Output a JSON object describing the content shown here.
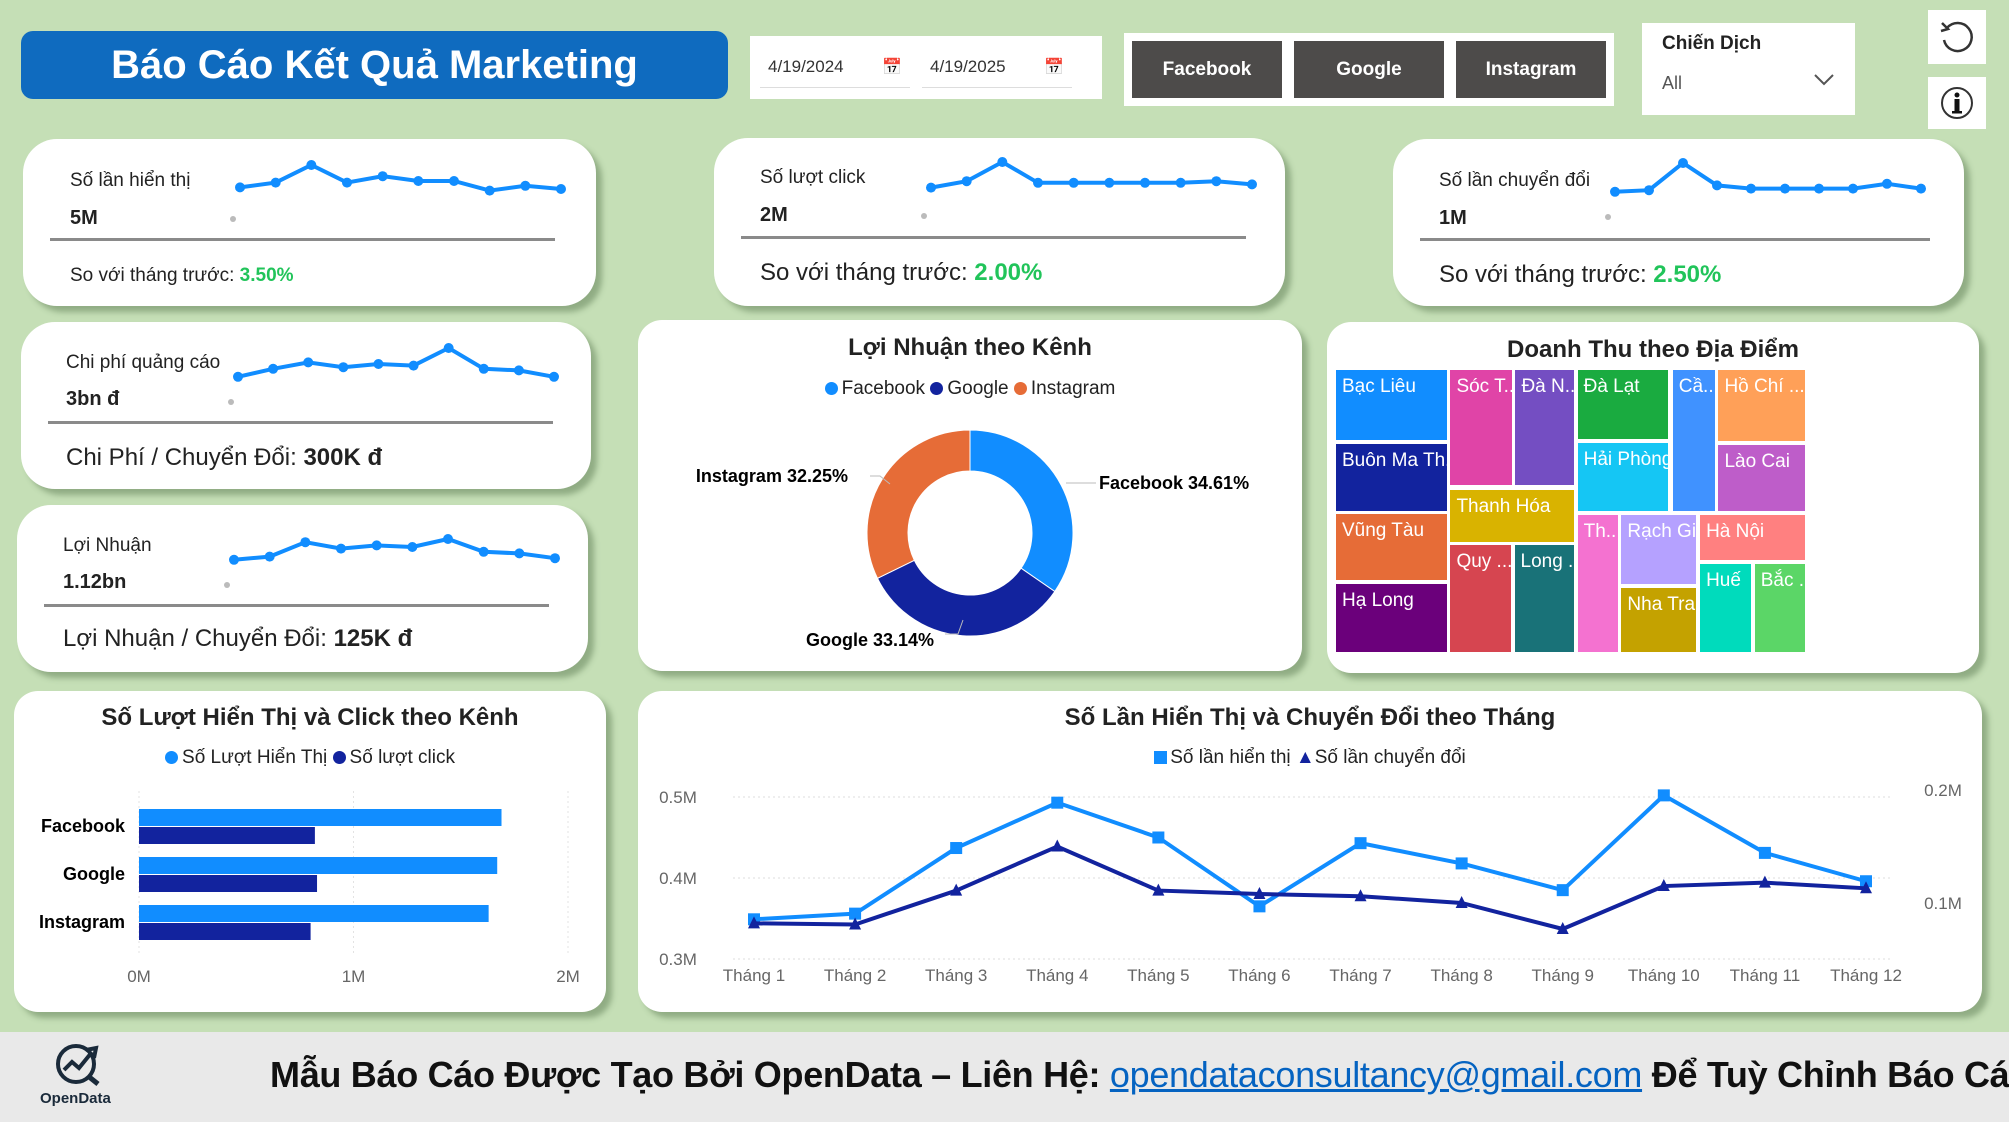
{
  "header": {
    "title": "Báo Cáo Kết Quả Marketing",
    "date_start": "4/19/2024",
    "date_end": "4/19/2025",
    "calendar_icon": "calendar-icon",
    "channel_buttons": [
      "Facebook",
      "Google",
      "Instagram"
    ],
    "campaign": {
      "label": "Chiến Dịch",
      "value": "All"
    },
    "reset_icon": "reset-icon",
    "info_icon": "info-icon"
  },
  "kpis": [
    {
      "label": "Số lần hiển thị",
      "value": "5M",
      "compare_label": "So với tháng trước:",
      "compare_value": "3.50%",
      "sparkline": [
        0.3,
        0.45,
        1.0,
        0.45,
        0.65,
        0.5,
        0.5,
        0.2,
        0.35,
        0.25
      ]
    },
    {
      "label": "Số lượt click",
      "value": "2M",
      "compare_label": "So với tháng trước:",
      "compare_value": "2.00%",
      "sparkline": [
        0.2,
        0.4,
        1.0,
        0.35,
        0.35,
        0.35,
        0.35,
        0.35,
        0.4,
        0.3
      ]
    },
    {
      "label": "Số lần chuyển đổi",
      "value": "1M",
      "compare_label": "So với tháng trước:",
      "compare_value": "2.50%",
      "sparkline": [
        0.1,
        0.15,
        1.0,
        0.3,
        0.2,
        0.2,
        0.2,
        0.2,
        0.35,
        0.2
      ]
    },
    {
      "label": "Chi phí quảng cáo",
      "value": "3bn đ",
      "compare_label": "Chi Phí / Chuyển Đổi:",
      "compare_value": "300K đ",
      "sparkline": [
        0.1,
        0.35,
        0.55,
        0.4,
        0.5,
        0.45,
        1.0,
        0.35,
        0.3,
        0.1
      ]
    },
    {
      "label": "Lợi Nhuận",
      "value": "1.12bn",
      "compare_label": "Lợi Nhuận / Chuyển Đổi:",
      "compare_value": "125K đ",
      "sparkline": [
        0.1,
        0.2,
        0.65,
        0.45,
        0.55,
        0.5,
        0.75,
        0.35,
        0.3,
        0.15
      ]
    }
  ],
  "colors": {
    "accent": "#118DFF",
    "dark": "#12239E",
    "orange": "#E66C37",
    "positive": "#21C45A"
  },
  "chart_data": [
    {
      "type": "pie",
      "title": "Lợi Nhuận theo Kênh",
      "legend": "top",
      "donut": true,
      "slices": [
        {
          "name": "Facebook",
          "value": 34.61,
          "label": "Facebook 34.61%",
          "color": "#118DFF"
        },
        {
          "name": "Google",
          "value": 33.14,
          "label": "Google 33.14%",
          "color": "#12239E"
        },
        {
          "name": "Instagram",
          "value": 32.25,
          "label": "Instagram 32.25%",
          "color": "#E66C37"
        }
      ]
    },
    {
      "type": "heatmap",
      "subtype": "treemap",
      "title": "Doanh Thu theo Địa Điểm",
      "cells": [
        {
          "label": "Bạc Liêu",
          "color": "#118DFF"
        },
        {
          "label": "Buôn Ma Th...",
          "color": "#12239E"
        },
        {
          "label": "Vũng Tàu",
          "color": "#E66C37"
        },
        {
          "label": "Hạ Long",
          "color": "#6B007B"
        },
        {
          "label": "Sóc T...",
          "color": "#E044A7"
        },
        {
          "label": "Đà N...",
          "color": "#744EC2"
        },
        {
          "label": "Thanh Hóa",
          "color": "#D9B300"
        },
        {
          "label": "Quy ...",
          "color": "#D64550"
        },
        {
          "label": "Long ...",
          "color": "#197278"
        },
        {
          "label": "Đà Lạt",
          "color": "#1AAB40"
        },
        {
          "label": "Hải Phòng",
          "color": "#15C6F4"
        },
        {
          "label": "Cầ...",
          "color": "#4092FF"
        },
        {
          "label": "Hồ Chí ...",
          "color": "#FFA058"
        },
        {
          "label": "Lào Cai",
          "color": "#BE5DC9"
        },
        {
          "label": "Th...",
          "color": "#F472D0"
        },
        {
          "label": "Rạch Giá",
          "color": "#B5A1FF"
        },
        {
          "label": "Nha Tra...",
          "color": "#C4A200"
        },
        {
          "label": "Hà Nội",
          "color": "#FF8080"
        },
        {
          "label": "Huế",
          "color": "#00DBBC"
        },
        {
          "label": "Bắc ...",
          "color": "#5BD667"
        }
      ]
    },
    {
      "type": "bar",
      "orientation": "horizontal",
      "title": "Số Lượt Hiển Thị và Click theo Kênh",
      "legend": "top",
      "categories": [
        "Facebook",
        "Google",
        "Instagram"
      ],
      "series": [
        {
          "name": "Số Lượt Hiển Thị",
          "values": [
            1.69,
            1.67,
            1.63
          ],
          "color": "#118DFF"
        },
        {
          "name": "Số lượt click",
          "values": [
            0.82,
            0.83,
            0.8
          ],
          "color": "#12239E"
        }
      ],
      "xlim": [
        0,
        2
      ],
      "xticks": [
        "0M",
        "1M",
        "2M"
      ],
      "unit": "M",
      "grid": true
    },
    {
      "type": "line",
      "title": "Số Lần Hiển Thị và Chuyển Đổi theo Tháng",
      "legend": "top",
      "categories": [
        "Tháng 1",
        "Tháng 2",
        "Tháng 3",
        "Tháng 4",
        "Tháng 5",
        "Tháng 6",
        "Tháng 7",
        "Tháng 8",
        "Tháng 9",
        "Tháng 10",
        "Tháng 11",
        "Tháng 12"
      ],
      "series": [
        {
          "name": "Số lần hiển thị",
          "axis": "left",
          "marker": "square",
          "color": "#118DFF",
          "values": [
            0.349,
            0.356,
            0.437,
            0.493,
            0.45,
            0.365,
            0.443,
            0.418,
            0.385,
            0.502,
            0.431,
            0.396
          ]
        },
        {
          "name": "Số lần chuyển đổi",
          "axis": "right",
          "marker": "triangle",
          "color": "#12239E",
          "values": [
            0.082,
            0.081,
            0.111,
            0.15,
            0.111,
            0.108,
            0.106,
            0.1,
            0.077,
            0.115,
            0.118,
            0.113
          ]
        }
      ],
      "ylim_left": [
        0.3,
        0.5
      ],
      "yticks_left": [
        "0.3M",
        "0.4M",
        "0.5M"
      ],
      "ylim_right": [
        0,
        0.2
      ],
      "yticks_right": [
        "0.1M",
        "0.2M"
      ],
      "unit": "M",
      "grid": true
    }
  ],
  "footer": {
    "logo_text": "OpenData",
    "text_before": "Mẫu Báo Cáo Được Tạo Bởi OpenData – Liên Hệ: ",
    "email": "opendataconsultancy@gmail.com",
    "text_after": " Để Tuỳ Chỉnh Báo Cáo"
  }
}
